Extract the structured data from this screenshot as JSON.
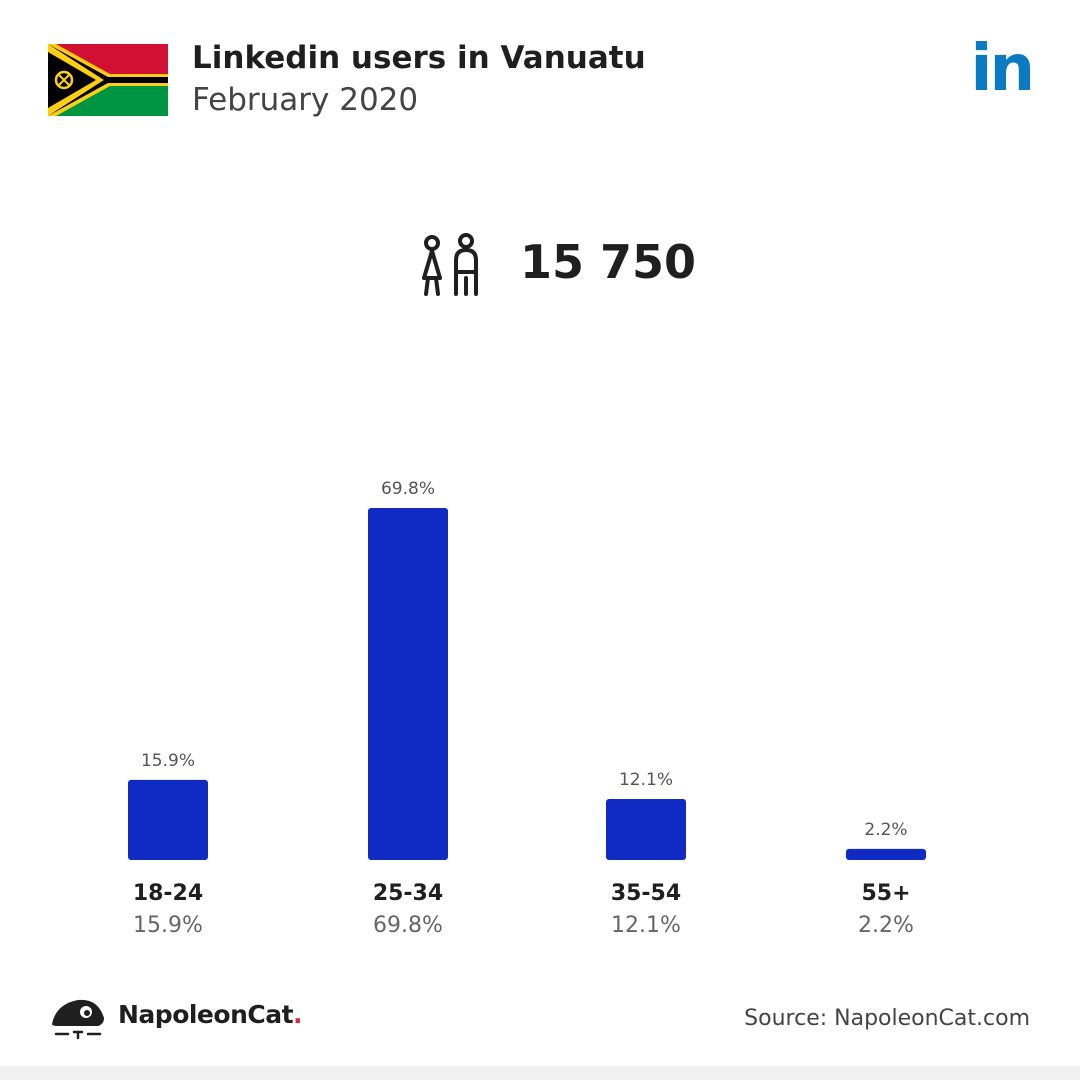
{
  "header": {
    "title": "Linkedin users in Vanuatu",
    "subtitle": "February 2020",
    "flag_icon": "vanuatu-flag",
    "logo_icon": "linkedin-icon",
    "logo_text": "in",
    "logo_color": "#0a7ac2"
  },
  "total": {
    "icon": "users-icon",
    "value": "15 750"
  },
  "chart_data": {
    "type": "bar",
    "categories": [
      "18-24",
      "25-34",
      "35-54",
      "55+"
    ],
    "values": [
      15.9,
      69.8,
      12.1,
      2.2
    ],
    "value_labels": [
      "15.9%",
      "69.8%",
      "12.1%",
      "2.2%"
    ],
    "title": "",
    "xlabel": "",
    "ylabel": "",
    "ylim": [
      0,
      69.8
    ],
    "grid": false,
    "bar_color": "#0f2bc4"
  },
  "footer": {
    "brand_icon": "napoleoncat-logo-icon",
    "brand_name": "NapoleonCat",
    "brand_dot": ".",
    "source": "Source: NapoleonCat.com"
  }
}
